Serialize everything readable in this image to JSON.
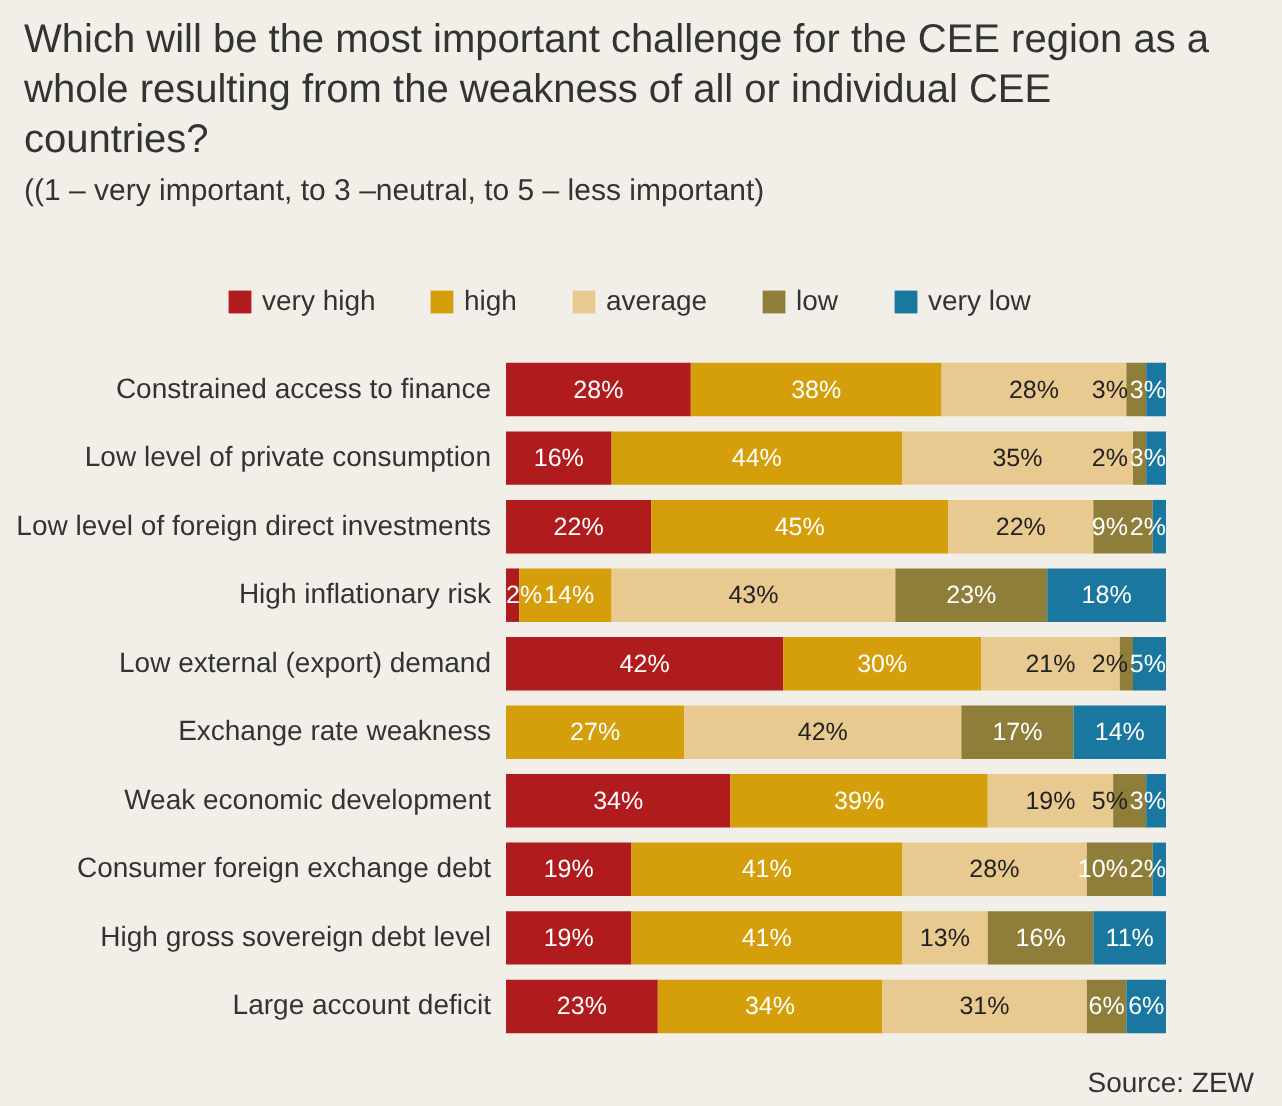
{
  "chart_data": {
    "type": "bar",
    "orientation": "horizontal",
    "stacked": true,
    "title": "Which will be the most important challenge for the CEE region as a whole resulting from the weakness of all or individual CEE countries?",
    "subtitle": "((1 – very important, to 3 –neutral, to 5 – less important)",
    "categories": [
      "Constrained access to finance",
      "Low level of private consumption",
      "Low level of foreign direct investments",
      "High inflationary risk",
      "Low external (export) demand",
      "Exchange rate weakness",
      "Weak economic development",
      "Consumer foreign exchange debt",
      "High gross sovereign debt level",
      "Large account deficit"
    ],
    "series": [
      {
        "name": "very high",
        "color": "#b01c1e",
        "values": [
          28,
          16,
          22,
          2,
          42,
          null,
          34,
          19,
          19,
          23
        ],
        "value_labels": [
          "28%",
          "16%",
          "22%",
          "2%",
          "42%",
          null,
          "34%",
          "19%",
          "19%",
          "23%"
        ]
      },
      {
        "name": "high",
        "color": "#d59e0b",
        "values": [
          38,
          44,
          45,
          14,
          30,
          27,
          39,
          41,
          41,
          34
        ],
        "value_labels": [
          "38%",
          "44%",
          "45%",
          "14%",
          "30%",
          "27%",
          "39%",
          "41%",
          "41%",
          "34%"
        ]
      },
      {
        "name": "average",
        "color": "#e8c990",
        "values": [
          28,
          35,
          22,
          43,
          21,
          42,
          19,
          28,
          13,
          31
        ],
        "value_labels": [
          "28%",
          "35%",
          "22%",
          "43%",
          "21%",
          "42%",
          "19%",
          "28%",
          "13%",
          "31%"
        ]
      },
      {
        "name": "low",
        "color": "#8f7e3a",
        "values": [
          3,
          2,
          9,
          23,
          2,
          17,
          5,
          10,
          16,
          6
        ],
        "value_labels": [
          "3%",
          "2%",
          "9%",
          "23%",
          "2%",
          "17%",
          "5%",
          "10%",
          "16%",
          "6%"
        ]
      },
      {
        "name": "very low",
        "color": "#1a77a0",
        "values": [
          3,
          3,
          2,
          18,
          5,
          14,
          3,
          2,
          11,
          6
        ],
        "value_labels": [
          "3%",
          "3%",
          "2%",
          "18%",
          "5%",
          "14%",
          "3%",
          "2%",
          "11%",
          "6%"
        ]
      }
    ],
    "legend": "top",
    "annotations": [
      "Source: ZEW"
    ]
  }
}
